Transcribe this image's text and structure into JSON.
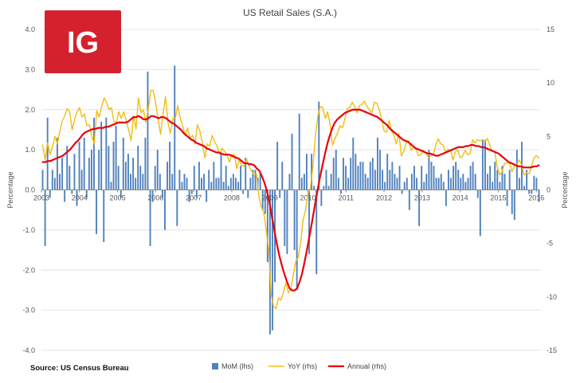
{
  "logo": {
    "text": "IG",
    "bg_color": "#d5212d"
  },
  "chart_data": {
    "type": "bar+line",
    "title": "US Retail Sales (S.A.)",
    "ylabel_left": "Percentage",
    "ylabel_right": "Percentage",
    "ylim_left": [
      -4.0,
      4.0
    ],
    "ylim_right": [
      -15,
      15
    ],
    "yticks_left": [
      "4.0",
      "3.0",
      "2.0",
      "1.0",
      "0.0",
      "-1.0",
      "-2.0",
      "-3.0",
      "-4.0"
    ],
    "yticks_right": [
      "15",
      "10",
      "5",
      "0",
      "-5",
      "-10",
      "-15"
    ],
    "xticks": [
      "2003",
      "2004",
      "2005",
      "2006",
      "2007",
      "2008",
      "2009",
      "2010",
      "2011",
      "2012",
      "2013",
      "2014",
      "2015",
      "2016"
    ],
    "x_start": 2003.0,
    "x_end": 2016.1,
    "source": "Source: US Census Bureau",
    "colors": {
      "mom": "#4f81bd",
      "yoy": "#f2bd12",
      "annual": "#e8000d",
      "grid": "#e4e4e4"
    },
    "series": [
      {
        "name": "MoM (lhs)",
        "type": "bar",
        "axis": "left",
        "values": [
          0.5,
          -1.4,
          1.8,
          -0.2,
          0.5,
          0.3,
          1.3,
          0.4,
          0.8,
          -0.3,
          1.1,
          0.6,
          -0.1,
          0.9,
          -0.4,
          1.2,
          0.5,
          1.3,
          -0.2,
          0.8,
          1.0,
          1.8,
          -1.1,
          1.0,
          1.7,
          -1.3,
          1.8,
          1.1,
          0.2,
          1.2,
          1.6,
          0.6,
          -0.2,
          1.3,
          0.7,
          0.9,
          0.4,
          0.8,
          0.3,
          1.1,
          0.6,
          0.4,
          1.3,
          2.95,
          -1.4,
          -0.3,
          0.6,
          1.0,
          0.4,
          -0.2,
          -1.0,
          0.7,
          1.2,
          0.4,
          3.1,
          -0.9,
          0.5,
          0.2,
          0.4,
          0.3,
          -0.3,
          -0.1,
          0.6,
          -0.2,
          0.7,
          0.3,
          0.4,
          -0.3,
          0.5,
          0.2,
          0.7,
          0.3,
          0.3,
          0.9,
          0.2,
          0.6,
          0.1,
          0.3,
          0.4,
          0.3,
          0.2,
          0.6,
          -0.1,
          0.8,
          -0.2,
          0.3,
          0.5,
          0.5,
          0.3,
          0.4,
          -0.5,
          -0.6,
          -1.8,
          -3.6,
          -3.5,
          -2.3,
          1.2,
          -0.2,
          0.7,
          -1.4,
          -1.6,
          0.4,
          1.4,
          -1.5,
          -2.5,
          1.9,
          0.3,
          0.4,
          0.9,
          -1.6,
          0.9,
          0.1,
          -2.1,
          2.2,
          -0.4,
          0.1,
          0.5,
          0.1,
          0.4,
          0.8,
          1.0,
          0.3,
          -0.1,
          0.8,
          0.6,
          0.3,
          0.8,
          1.3,
          0.9,
          0.6,
          0.7,
          0.7,
          0.4,
          0.3,
          0.7,
          0.8,
          0.5,
          1.3,
          1.0,
          0.5,
          0.2,
          0.9,
          0.5,
          0.7,
          0.4,
          0.3,
          0.6,
          -0.1,
          0.2,
          0.3,
          -0.5,
          0.4,
          0.6,
          0.3,
          -0.9,
          0.6,
          0.2,
          0.4,
          1.0,
          0.7,
          0.6,
          0.3,
          0.3,
          0.4,
          0.2,
          -0.4,
          0.5,
          0.3,
          0.6,
          0.7,
          0.5,
          0.3,
          0.4,
          0.2,
          0.3,
          0.6,
          0.7,
          0.4,
          -0.2,
          -1.15,
          1.25,
          1.25,
          0.4,
          0.6,
          0.2,
          0.7,
          0.5,
          0.2,
          0.6,
          0.4,
          -0.4,
          0.5,
          -0.6,
          -0.75,
          1.0,
          0.3,
          1.2,
          0.1,
          0.5,
          -0.1,
          -0.1,
          0.35,
          0.3,
          -0.3
        ]
      },
      {
        "name": "YoY (rhs)",
        "type": "line",
        "axis": "right",
        "values": [
          4.2,
          2.8,
          4.4,
          3.3,
          4.0,
          5.0,
          4.3,
          5.5,
          6.5,
          6.9,
          7.6,
          7.3,
          5.6,
          6.6,
          7.3,
          7.7,
          6.8,
          7.1,
          6.0,
          6.1,
          5.0,
          4.3,
          7.4,
          6.8,
          7.8,
          8.6,
          8.2,
          7.5,
          7.7,
          6.4,
          6.3,
          7.3,
          6.7,
          7.3,
          6.5,
          5.6,
          4.6,
          6.9,
          5.7,
          8.6,
          7.2,
          7.5,
          6.3,
          7.6,
          9.3,
          9.3,
          8.1,
          6.6,
          5.2,
          7.1,
          8.7,
          6.3,
          5.3,
          6.7,
          6.7,
          7.9,
          6.7,
          6.0,
          5.1,
          5.8,
          4.8,
          5.1,
          4.3,
          6.1,
          5.5,
          4.4,
          3.0,
          4.3,
          4.1,
          5.1,
          4.5,
          4.1,
          3.3,
          3.9,
          3.6,
          3.3,
          2.6,
          3.3,
          3.3,
          2.0,
          2.8,
          2.3,
          2.2,
          2.9,
          2.2,
          1.8,
          1.4,
          1.5,
          -0.6,
          -1.6,
          -2.1,
          -3.8,
          -5.5,
          -9.8,
          -10.9,
          -11.1,
          -10.1,
          -10.3,
          -9.6,
          -8.7,
          -9.6,
          -9.3,
          -8.0,
          -6.7,
          -6.3,
          -5.0,
          -2.8,
          -1.9,
          -0.3,
          0.2,
          2.2,
          5.0,
          6.9,
          7.8,
          7.7,
          6.7,
          7.3,
          6.1,
          4.2,
          4.8,
          5.3,
          6.0,
          5.8,
          6.6,
          7.6,
          7.7,
          8.2,
          7.8,
          7.2,
          7.9,
          8.0,
          8.3,
          7.8,
          7.5,
          7.2,
          8.2,
          8.1,
          7.5,
          6.6,
          5.5,
          5.4,
          6.5,
          5.5,
          5.1,
          4.3,
          5.3,
          3.2,
          3.6,
          4.4,
          4.6,
          3.7,
          4.0,
          3.8,
          3.2,
          3.3,
          3.7,
          3.4,
          3.0,
          3.2,
          3.3,
          4.2,
          4.8,
          4.3,
          4.2,
          3.5,
          3.8,
          3.7,
          2.8,
          3.6,
          3.7,
          3.0,
          3.2,
          3.7,
          3.3,
          3.4,
          4.7,
          4.4,
          4.7,
          4.6,
          4.7,
          4.5,
          4.8,
          4.2,
          3.6,
          3.6,
          2.2,
          1.4,
          1.7,
          2.5,
          2.5,
          2.6,
          1.7,
          2.2,
          2.4,
          2.8,
          2.3,
          1.4,
          1.6,
          1.5,
          2.2,
          3.0,
          3.2,
          3.0
        ]
      },
      {
        "name": "Annual (rhs)",
        "type": "line",
        "axis": "right",
        "values": [
          2.6,
          2.6,
          2.7,
          2.7,
          2.8,
          2.9,
          3.0,
          3.1,
          3.2,
          3.4,
          3.6,
          3.8,
          4.1,
          4.4,
          4.6,
          4.9,
          5.2,
          5.4,
          5.5,
          5.6,
          5.7,
          5.7,
          5.8,
          5.8,
          5.8,
          5.9,
          5.9,
          6.0,
          6.1,
          6.2,
          6.3,
          6.3,
          6.3,
          6.3,
          6.4,
          6.6,
          6.8,
          6.8,
          6.9,
          6.8,
          6.6,
          6.6,
          6.7,
          6.9,
          6.9,
          6.8,
          6.7,
          6.8,
          6.8,
          6.7,
          6.5,
          6.3,
          6.2,
          6.0,
          5.8,
          5.6,
          5.3,
          5.1,
          4.9,
          4.7,
          4.6,
          4.4,
          4.3,
          4.2,
          4.1,
          3.9,
          3.8,
          3.7,
          3.6,
          3.5,
          3.5,
          3.4,
          3.3,
          3.3,
          3.3,
          3.2,
          3.1,
          3.0,
          2.9,
          2.7,
          2.5,
          2.5,
          2.4,
          2.4,
          2.3,
          2.0,
          1.8,
          1.3,
          0.7,
          -0.1,
          -1.1,
          -2.5,
          -3.8,
          -5.1,
          -6.2,
          -7.1,
          -7.9,
          -8.6,
          -9.2,
          -9.4,
          -9.4,
          -9.2,
          -8.6,
          -7.8,
          -6.7,
          -5.5,
          -4.2,
          -2.9,
          -1.5,
          -0.2,
          1.1,
          2.2,
          3.3,
          4.3,
          5.1,
          5.8,
          6.3,
          6.6,
          6.8,
          7.0,
          7.2,
          7.3,
          7.4,
          7.5,
          7.5,
          7.5,
          7.5,
          7.4,
          7.3,
          7.2,
          7.1,
          7.0,
          6.9,
          6.8,
          6.6,
          6.4,
          6.2,
          6.0,
          5.7,
          5.5,
          5.3,
          5.1,
          4.9,
          4.7,
          4.6,
          4.5,
          4.3,
          4.1,
          3.9,
          3.8,
          3.7,
          3.6,
          3.5,
          3.4,
          3.4,
          3.3,
          3.2,
          3.2,
          3.3,
          3.4,
          3.5,
          3.6,
          3.7,
          3.8,
          3.9,
          4.0,
          4.0,
          4.0,
          4.1,
          4.1,
          4.2,
          4.2,
          4.1,
          4.1,
          4.0,
          4.0,
          3.9,
          3.8,
          3.7,
          3.6,
          3.5,
          3.4,
          3.2,
          3.0,
          2.8,
          2.6,
          2.5,
          2.4,
          2.3,
          2.2,
          2.2,
          2.1,
          2.1,
          2.1,
          2.1,
          2.2,
          2.2,
          2.3
        ]
      }
    ],
    "legend": [
      "MoM (lhs)",
      "YoY (rhs)",
      "Annual (rhs)"
    ],
    "legend_position": "bottom-center"
  }
}
